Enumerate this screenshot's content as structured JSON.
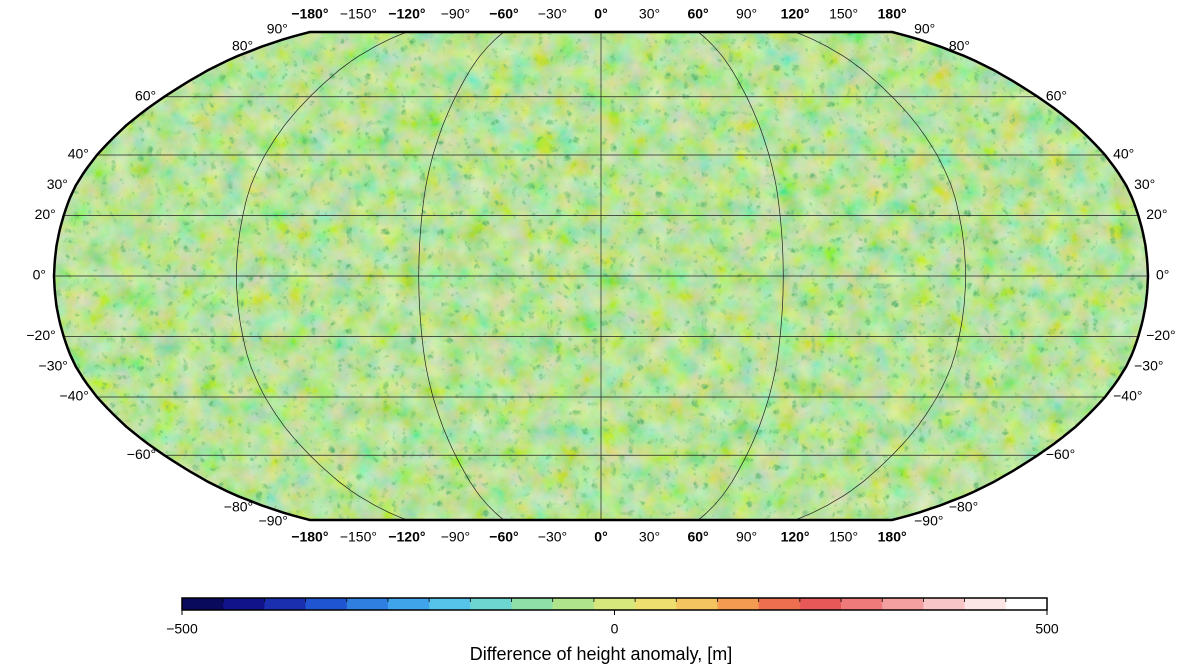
{
  "map": {
    "lon_labels": [
      {
        "value": -180,
        "label": "−180°"
      },
      {
        "value": -150,
        "label": "−150°"
      },
      {
        "value": -120,
        "label": "−120°"
      },
      {
        "value": -90,
        "label": "−90°"
      },
      {
        "value": -60,
        "label": "−60°"
      },
      {
        "value": -30,
        "label": "−30°"
      },
      {
        "value": 0,
        "label": "0°"
      },
      {
        "value": 30,
        "label": "30°"
      },
      {
        "value": 60,
        "label": "60°"
      },
      {
        "value": 90,
        "label": "90°"
      },
      {
        "value": 120,
        "label": "120°"
      },
      {
        "value": 150,
        "label": "150°"
      },
      {
        "value": 180,
        "label": "180°"
      }
    ],
    "lat_labels": [
      {
        "value": 90,
        "label": "90°"
      },
      {
        "value": 80,
        "label": "80°"
      },
      {
        "value": 60,
        "label": "60°"
      },
      {
        "value": 40,
        "label": "40°"
      },
      {
        "value": 30,
        "label": "30°"
      },
      {
        "value": 20,
        "label": "20°"
      },
      {
        "value": 0,
        "label": "0°"
      },
      {
        "value": -20,
        "label": "−20°"
      },
      {
        "value": -30,
        "label": "−30°"
      },
      {
        "value": -40,
        "label": "−40°"
      },
      {
        "value": -60,
        "label": "−60°"
      },
      {
        "value": -80,
        "label": "−80°"
      },
      {
        "value": -90,
        "label": "−90°"
      }
    ]
  },
  "colorbar": {
    "lim": [
      -500,
      500
    ],
    "ticks": [
      {
        "value": -500,
        "label": "−500"
      },
      {
        "value": 0,
        "label": "0"
      },
      {
        "value": 500,
        "label": "500"
      }
    ],
    "colors": [
      "#0a0a5c",
      "#10138a",
      "#1a2fb0",
      "#1f55d0",
      "#2e7fe0",
      "#3fa4ea",
      "#56c4e8",
      "#6ed6d0",
      "#8ee0a8",
      "#b0e48c",
      "#d6e87c",
      "#eede70",
      "#f4c460",
      "#f49b52",
      "#ee6e50",
      "#e85858",
      "#ee7a7a",
      "#f4a0a0",
      "#f8c6c6",
      "#fce6e6",
      "#ffffff"
    ],
    "label": "Difference of height anomaly, [m]"
  }
}
